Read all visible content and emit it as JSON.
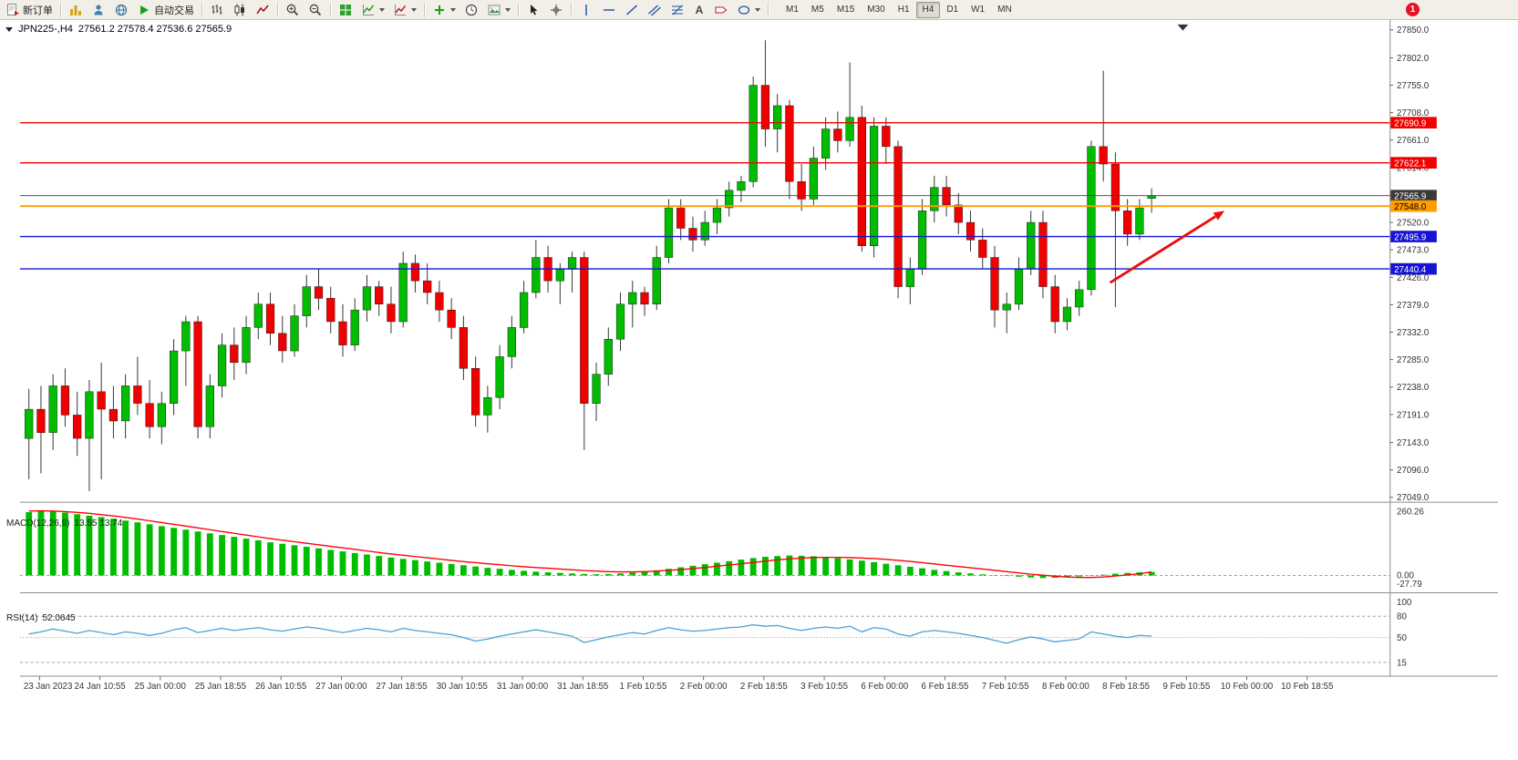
{
  "toolbar": {
    "new_order_label": "新订单",
    "auto_trading_label": "自动交易",
    "text_tool_glyph": "A",
    "timeframes": [
      "M1",
      "M5",
      "M15",
      "M30",
      "H1",
      "H4",
      "D1",
      "W1",
      "MN"
    ],
    "active_timeframe": "H4",
    "notification_badge": "1"
  },
  "chart": {
    "title_text": "JPN225-,H4",
    "ohlc_text": "27561.2 27578.4 27536.6 27565.9"
  },
  "chart_data": {
    "type": "candlestick",
    "symbol": "JPN225-",
    "timeframe": "H4",
    "colors": {
      "up": "#00bd00",
      "down": "#f20000",
      "wick": "#333333",
      "macd_histogram": "#00bd00",
      "macd_signal": "#ff0000",
      "rsi_line": "#4a9fd6",
      "axis_text": "#333333"
    },
    "price_axis": {
      "top_price": 27850,
      "bottom_price": 27049,
      "ticks": [
        27850,
        27802,
        27755,
        27708,
        27661,
        27614,
        27567,
        27520,
        27473,
        27426,
        27379,
        27332,
        27285,
        27238,
        27191,
        27143,
        27096,
        27049
      ]
    },
    "levels": [
      {
        "price": 27690.9,
        "label": "27690.9",
        "color": "#f20000",
        "text_color": "#ffffff",
        "width": 1.4
      },
      {
        "price": 27622.1,
        "label": "27622.1",
        "color": "#f20000",
        "text_color": "#ffffff",
        "width": 1.4
      },
      {
        "price": 27565.9,
        "label": "27565.9",
        "color": "#3a3a3a",
        "text_color": "#ffffff",
        "width": 1
      },
      {
        "price": 27548.0,
        "label": "27548.0",
        "color": "#ff9c00",
        "text_color": "#000000",
        "width": 2
      },
      {
        "price": 27495.9,
        "label": "27495.9",
        "color": "#1414d2",
        "text_color": "#ffffff",
        "width": 1.4
      },
      {
        "price": 27440.4,
        "label": "27440.4",
        "color": "#1414d2",
        "text_color": "#ffffff",
        "width": 1.4
      }
    ],
    "candles": [
      [
        27150,
        27235,
        27080,
        27200
      ],
      [
        27200,
        27240,
        27090,
        27160
      ],
      [
        27160,
        27260,
        27130,
        27240
      ],
      [
        27240,
        27270,
        27170,
        27190
      ],
      [
        27190,
        27230,
        27120,
        27150
      ],
      [
        27150,
        27250,
        27060,
        27230
      ],
      [
        27230,
        27280,
        27080,
        27200
      ],
      [
        27200,
        27240,
        27150,
        27180
      ],
      [
        27180,
        27260,
        27150,
        27240
      ],
      [
        27240,
        27290,
        27190,
        27210
      ],
      [
        27210,
        27250,
        27150,
        27170
      ],
      [
        27170,
        27230,
        27140,
        27210
      ],
      [
        27210,
        27320,
        27190,
        27300
      ],
      [
        27300,
        27360,
        27240,
        27350
      ],
      [
        27350,
        27360,
        27150,
        27170
      ],
      [
        27170,
        27260,
        27150,
        27240
      ],
      [
        27240,
        27330,
        27220,
        27310
      ],
      [
        27310,
        27340,
        27250,
        27280
      ],
      [
        27280,
        27360,
        27260,
        27340
      ],
      [
        27340,
        27400,
        27320,
        27380
      ],
      [
        27380,
        27400,
        27310,
        27330
      ],
      [
        27330,
        27360,
        27280,
        27300
      ],
      [
        27300,
        27380,
        27290,
        27360
      ],
      [
        27360,
        27430,
        27340,
        27410
      ],
      [
        27410,
        27440,
        27370,
        27390
      ],
      [
        27390,
        27410,
        27330,
        27350
      ],
      [
        27350,
        27380,
        27290,
        27310
      ],
      [
        27310,
        27390,
        27300,
        27370
      ],
      [
        27370,
        27430,
        27350,
        27410
      ],
      [
        27410,
        27420,
        27360,
        27380
      ],
      [
        27380,
        27410,
        27330,
        27350
      ],
      [
        27350,
        27470,
        27340,
        27450
      ],
      [
        27450,
        27465,
        27400,
        27420
      ],
      [
        27420,
        27450,
        27380,
        27400
      ],
      [
        27400,
        27420,
        27350,
        27370
      ],
      [
        27370,
        27390,
        27320,
        27340
      ],
      [
        27340,
        27360,
        27250,
        27270
      ],
      [
        27270,
        27290,
        27170,
        27190
      ],
      [
        27190,
        27240,
        27160,
        27220
      ],
      [
        27220,
        27310,
        27200,
        27290
      ],
      [
        27290,
        27360,
        27270,
        27340
      ],
      [
        27340,
        27420,
        27330,
        27400
      ],
      [
        27400,
        27490,
        27390,
        27460
      ],
      [
        27460,
        27480,
        27400,
        27420
      ],
      [
        27420,
        27450,
        27380,
        27440
      ],
      [
        27440,
        27470,
        27400,
        27460
      ],
      [
        27460,
        27470,
        27130,
        27210
      ],
      [
        27210,
        27280,
        27180,
        27260
      ],
      [
        27260,
        27340,
        27240,
        27320
      ],
      [
        27320,
        27400,
        27300,
        27380
      ],
      [
        27380,
        27420,
        27340,
        27400
      ],
      [
        27400,
        27410,
        27360,
        27380
      ],
      [
        27380,
        27480,
        27370,
        27460
      ],
      [
        27460,
        27560,
        27450,
        27545
      ],
      [
        27545,
        27560,
        27490,
        27510
      ],
      [
        27510,
        27530,
        27470,
        27490
      ],
      [
        27490,
        27540,
        27480,
        27520
      ],
      [
        27520,
        27560,
        27500,
        27545
      ],
      [
        27545,
        27590,
        27530,
        27575
      ],
      [
        27575,
        27600,
        27555,
        27590
      ],
      [
        27590,
        27770,
        27580,
        27755
      ],
      [
        27755,
        27832,
        27650,
        27680
      ],
      [
        27680,
        27740,
        27640,
        27720
      ],
      [
        27720,
        27730,
        27560,
        27590
      ],
      [
        27590,
        27620,
        27540,
        27560
      ],
      [
        27560,
        27650,
        27550,
        27630
      ],
      [
        27630,
        27700,
        27610,
        27680
      ],
      [
        27680,
        27710,
        27640,
        27660
      ],
      [
        27660,
        27794,
        27650,
        27700
      ],
      [
        27700,
        27720,
        27470,
        27480
      ],
      [
        27480,
        27700,
        27460,
        27685
      ],
      [
        27685,
        27700,
        27620,
        27650
      ],
      [
        27650,
        27660,
        27390,
        27410
      ],
      [
        27410,
        27460,
        27380,
        27440
      ],
      [
        27440,
        27560,
        27430,
        27540
      ],
      [
        27540,
        27600,
        27520,
        27580
      ],
      [
        27580,
        27600,
        27530,
        27550
      ],
      [
        27550,
        27570,
        27500,
        27520
      ],
      [
        27520,
        27540,
        27470,
        27490
      ],
      [
        27490,
        27510,
        27440,
        27460
      ],
      [
        27460,
        27480,
        27340,
        27370
      ],
      [
        27370,
        27400,
        27330,
        27380
      ],
      [
        27380,
        27460,
        27370,
        27440
      ],
      [
        27440,
        27540,
        27430,
        27520
      ],
      [
        27520,
        27540,
        27390,
        27410
      ],
      [
        27410,
        27430,
        27330,
        27350
      ],
      [
        27350,
        27390,
        27335,
        27375
      ],
      [
        27375,
        27420,
        27360,
        27405
      ],
      [
        27405,
        27660,
        27395,
        27650
      ],
      [
        27650,
        27780,
        27590,
        27620
      ],
      [
        27620,
        27640,
        27375,
        27540
      ],
      [
        27540,
        27560,
        27480,
        27500
      ],
      [
        27500,
        27560,
        27490,
        27545
      ],
      [
        27561.2,
        27578.4,
        27536.6,
        27565.9
      ]
    ],
    "time_labels": [
      "23 Jan 2023",
      "24 Jan 10:55",
      "25 Jan 00:00",
      "25 Jan 18:55",
      "26 Jan 10:55",
      "27 Jan 00:00",
      "27 Jan 18:55",
      "30 Jan 10:55",
      "31 Jan 00:00",
      "31 Jan 18:55",
      "1 Feb 10:55",
      "2 Feb 00:00",
      "2 Feb 18:55",
      "3 Feb 10:55",
      "6 Feb 00:00",
      "6 Feb 18:55",
      "7 Feb 10:55",
      "8 Feb 00:00",
      "8 Feb 18:55",
      "9 Feb 10:55",
      "10 Feb 00:00",
      "10 Feb 18:55"
    ],
    "macd": {
      "label": "MACD(12,26,9)",
      "values_label": "13.55 13.74",
      "max_label": "260.26",
      "zero_label": "0.00",
      "min_label": "-27.79",
      "histogram": [
        248,
        252,
        250,
        246,
        240,
        234,
        228,
        222,
        215,
        208,
        200,
        193,
        186,
        179,
        172,
        165,
        158,
        151,
        144,
        137,
        130,
        124,
        118,
        112,
        106,
        100,
        94,
        88,
        82,
        76,
        70,
        65,
        60,
        55,
        50,
        45,
        40,
        35,
        30,
        26,
        22,
        18,
        15,
        12,
        10,
        8,
        6,
        5,
        6,
        8,
        11,
        15,
        20,
        26,
        32,
        38,
        44,
        50,
        56,
        62,
        68,
        73,
        76,
        78,
        77,
        75,
        72,
        68,
        63,
        58,
        52,
        46,
        40,
        34,
        28,
        22,
        17,
        12,
        8,
        4,
        1,
        -2,
        -5,
        -8,
        -10,
        -9,
        -7,
        -4,
        -1,
        3,
        7,
        10,
        12,
        13.55
      ],
      "signal": [
        252,
        253,
        252,
        250,
        247,
        243,
        238,
        233,
        227,
        221,
        214,
        207,
        200,
        193,
        186,
        179,
        172,
        165,
        158,
        151,
        144,
        138,
        132,
        126,
        120,
        114,
        108,
        102,
        96,
        90,
        84,
        79,
        74,
        69,
        64,
        59,
        54,
        50,
        46,
        42,
        38,
        34,
        31,
        28,
        25,
        22,
        19,
        17,
        15,
        14,
        14,
        15,
        17,
        20,
        23,
        27,
        31,
        36,
        41,
        46,
        51,
        56,
        61,
        65,
        68,
        70,
        71,
        71,
        70,
        68,
        66,
        63,
        59,
        55,
        50,
        45,
        40,
        35,
        30,
        25,
        20,
        15,
        10,
        5,
        1,
        -3,
        -6,
        -8,
        -8,
        -6,
        -2,
        2,
        7,
        13.74
      ]
    },
    "rsi": {
      "label": "RSI(14)",
      "value_label": "52.0645",
      "ticks": [
        100,
        80,
        50,
        15
      ],
      "levels": [
        80,
        50,
        15
      ],
      "values": [
        55,
        58,
        62,
        59,
        56,
        60,
        57,
        54,
        58,
        56,
        53,
        56,
        61,
        64,
        57,
        60,
        63,
        60,
        62,
        64,
        61,
        59,
        62,
        65,
        63,
        60,
        57,
        60,
        63,
        61,
        58,
        63,
        60,
        58,
        56,
        54,
        50,
        45,
        48,
        52,
        55,
        58,
        61,
        58,
        55,
        52,
        43,
        47,
        51,
        54,
        57,
        55,
        60,
        64,
        61,
        59,
        60,
        62,
        64,
        65,
        68,
        66,
        67,
        63,
        60,
        63,
        65,
        63,
        66,
        58,
        64,
        62,
        55,
        52,
        58,
        60,
        58,
        56,
        53,
        50,
        46,
        42,
        47,
        51,
        48,
        44,
        46,
        48,
        58,
        55,
        52,
        50,
        53,
        52.06
      ]
    },
    "arrow": {
      "from": [
        1228,
        318
      ],
      "to": [
        1357,
        237
      ],
      "color": "#e81010"
    }
  }
}
